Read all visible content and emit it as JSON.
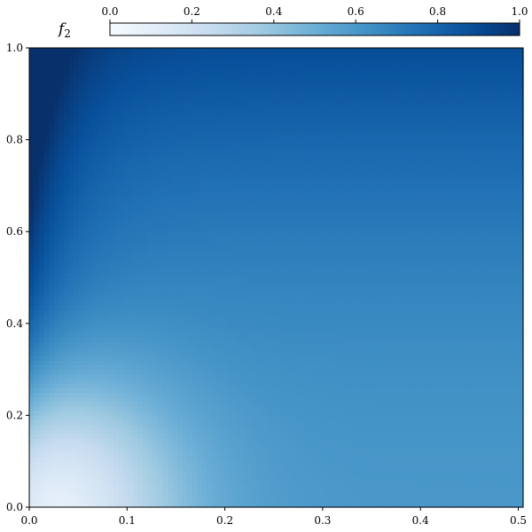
{
  "chart_data": {
    "type": "heatmap",
    "title": "",
    "xlabel": "",
    "ylabel": "",
    "xlim": [
      0.0,
      0.505
    ],
    "ylim": [
      0.0,
      1.0
    ],
    "x_ticks": [
      "0.0",
      "0.1",
      "0.2",
      "0.3",
      "0.4",
      "0.5"
    ],
    "y_ticks": [
      "0.0",
      "0.2",
      "0.4",
      "0.6",
      "0.8",
      "1.0"
    ],
    "colorbar": {
      "label": "f",
      "label_subscript": "2",
      "range": [
        0.0,
        1.0
      ],
      "ticks": [
        "0.0",
        "0.2",
        "0.4",
        "0.6",
        "0.8",
        "1.0"
      ],
      "colormap": "Blues",
      "placement": "top"
    },
    "grid_resolution": {
      "nx": 100,
      "ny": 100
    },
    "value_profile": [
      {
        "x": 0.0,
        "y": 0.0,
        "value": 0.0
      },
      {
        "x": 0.05,
        "y": 0.05,
        "value": 0.2
      },
      {
        "x": 0.1,
        "y": 0.02,
        "value": 0.3
      },
      {
        "x": 0.5,
        "y": 0.0,
        "value": 0.6
      },
      {
        "x": 0.5,
        "y": 0.5,
        "value": 0.63
      },
      {
        "x": 0.5,
        "y": 1.0,
        "value": 0.85
      },
      {
        "x": 0.02,
        "y": 0.6,
        "value": 0.9
      },
      {
        "x": 0.02,
        "y": 0.98,
        "value": 0.7
      }
    ],
    "grid": false
  }
}
